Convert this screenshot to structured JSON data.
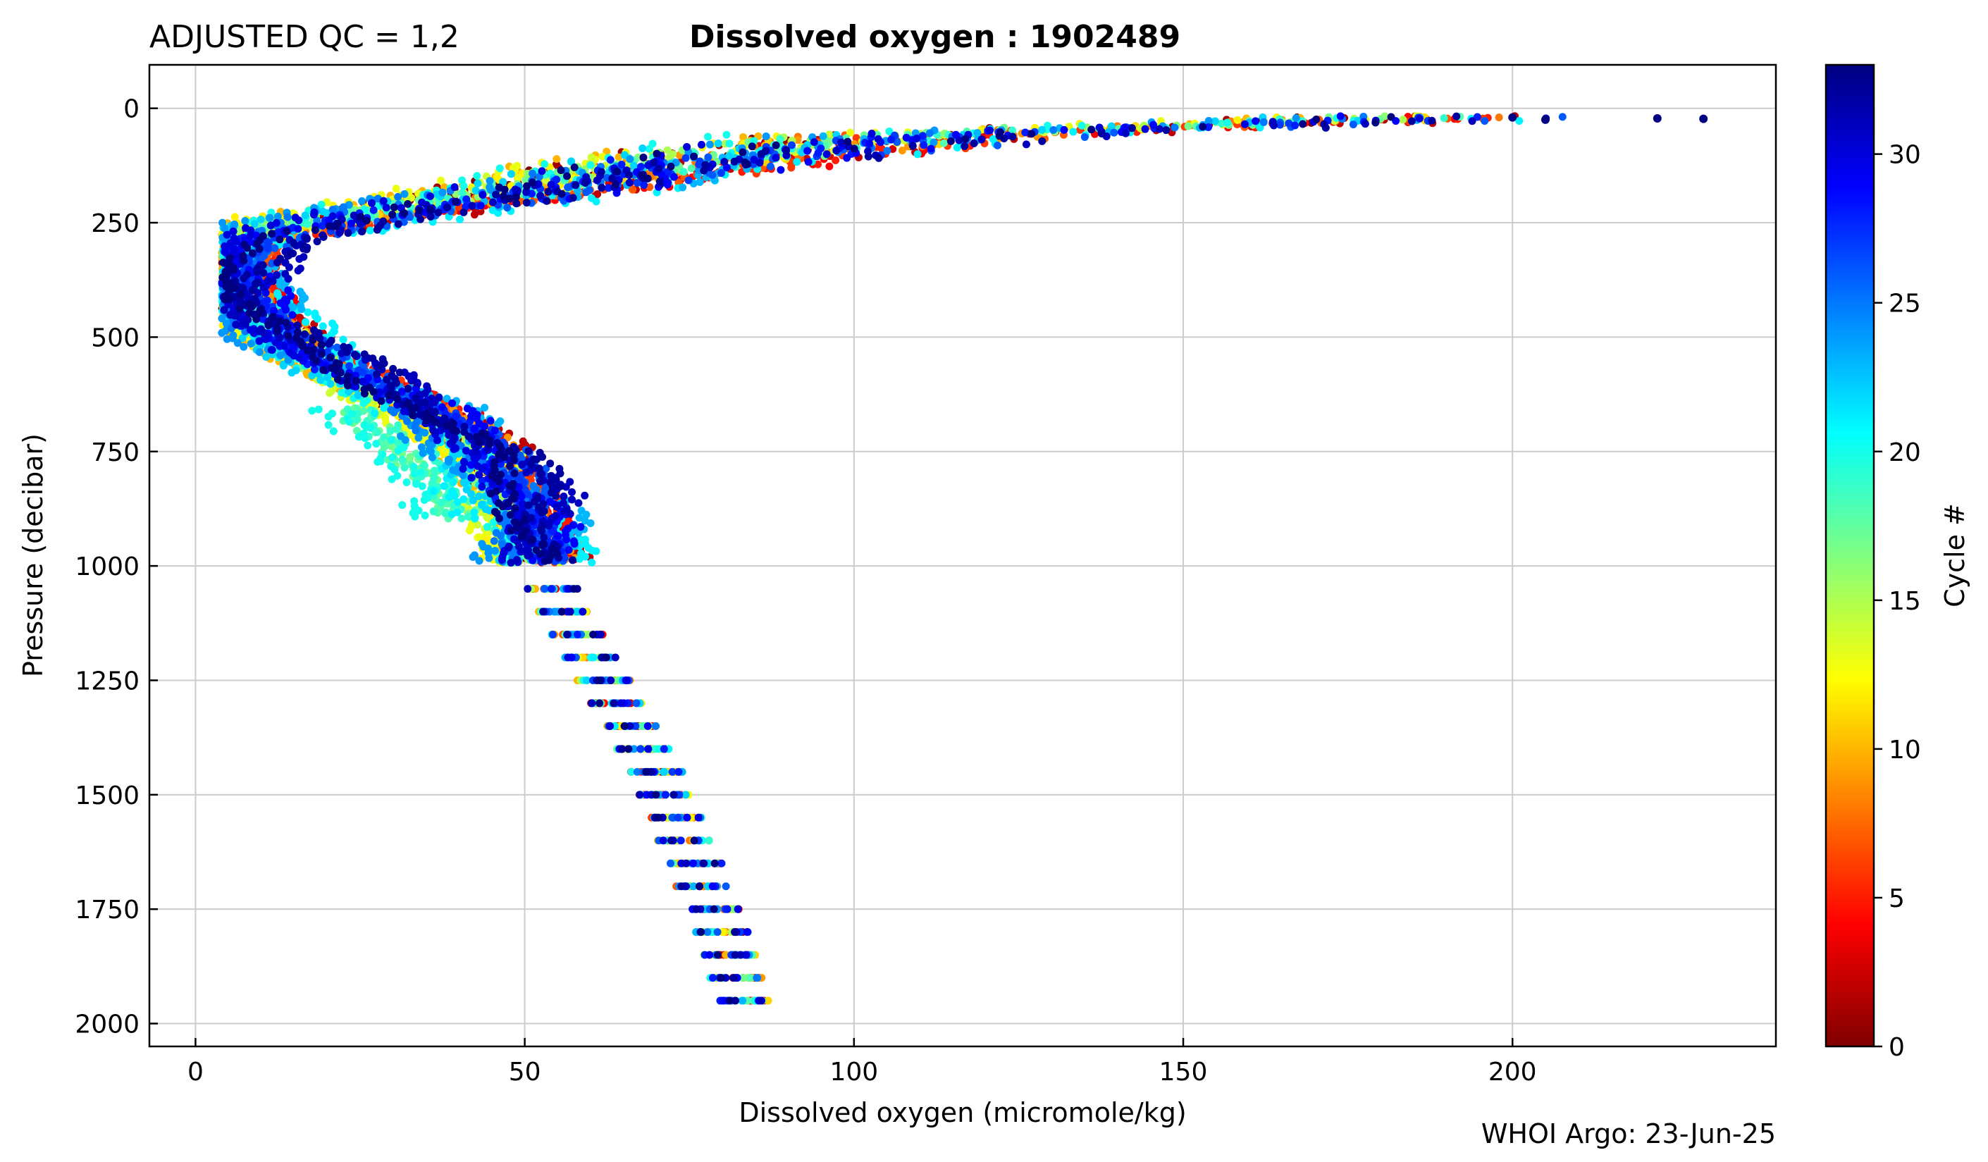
{
  "figure": {
    "qc_label": "ADJUSTED QC = 1,2",
    "title": "Dissolved oxygen : 1902489",
    "credit": "WHOI Argo: 23-Jun-25"
  },
  "chart_data": {
    "type": "scatter",
    "title": "Dissolved oxygen : 1902489",
    "subtitle": "ADJUSTED QC = 1,2",
    "xlabel": "Dissolved oxygen  (micromole/kg)",
    "ylabel": "Pressure  (decibar)",
    "xlim": [
      -7,
      240
    ],
    "ylim": [
      2050,
      -95
    ],
    "y_inverted": true,
    "xticks": [
      0,
      50,
      100,
      150,
      200
    ],
    "yticks": [
      0,
      250,
      500,
      750,
      1000,
      1250,
      1500,
      1750,
      2000
    ],
    "grid": true,
    "colorbar": {
      "label": "Cycle #",
      "min": 0,
      "max": 33,
      "ticks": [
        0,
        5,
        10,
        15,
        20,
        25,
        30
      ],
      "colormap": "jet_reversed",
      "colors": [
        "#800000",
        "#ff0000",
        "#ff8000",
        "#ffff00",
        "#80ff80",
        "#00ffff",
        "#0080ff",
        "#0000ff",
        "#000080"
      ]
    },
    "series_description_values": {
      "profile_shape": {
        "pressure": [
          20,
          60,
          120,
          180,
          240,
          280,
          320,
          360,
          400,
          450,
          500,
          550,
          600,
          650,
          700,
          750,
          800,
          850,
          900,
          950,
          980,
          1000
        ],
        "oxygen": [
          185,
          110,
          75,
          52,
          22,
          10,
          7,
          6,
          7,
          9,
          13,
          19,
          26,
          34,
          40,
          44,
          46,
          49,
          51,
          52,
          52,
          50
        ]
      },
      "deep_points": {
        "pressure": [
          1050,
          1100,
          1150,
          1200,
          1250,
          1300,
          1350,
          1400,
          1450,
          1500,
          1550,
          1600,
          1650,
          1700,
          1750,
          1800,
          1850,
          1900,
          1950
        ],
        "oxygen": [
          54,
          56,
          58,
          60,
          62,
          64,
          66,
          68,
          70,
          71,
          73,
          74,
          76,
          77,
          79,
          80,
          81,
          82,
          83
        ]
      },
      "surface_outliers": [
        {
          "oxygen": 200,
          "pressure": 20,
          "cycle": 33
        },
        {
          "oxygen": 205,
          "pressure": 25,
          "cycle": 33
        },
        {
          "oxygen": 222,
          "pressure": 22,
          "cycle": 33
        },
        {
          "oxygen": 229,
          "pressure": 23,
          "cycle": 33
        }
      ]
    }
  }
}
